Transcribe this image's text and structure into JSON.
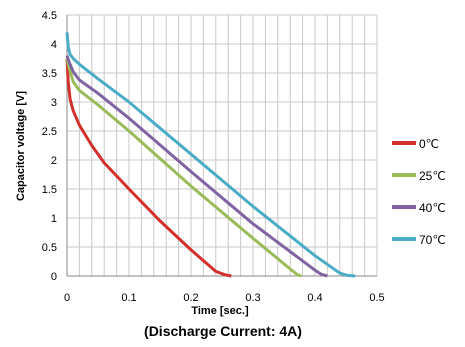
{
  "chart_data": {
    "type": "line",
    "xlabel": "Time [sec.]",
    "ylabel": "Capacitor voltage [V]",
    "caption": "(Discharge Current: 4A)",
    "xlim": [
      0,
      0.5
    ],
    "ylim": [
      0,
      4.5
    ],
    "x_ticks": [
      "0",
      "0.1",
      "0.2",
      "0.3",
      "0.4",
      "0.5"
    ],
    "y_ticks": [
      "0",
      "0.5",
      "1",
      "1.5",
      "2",
      "2.5",
      "3",
      "3.5",
      "4",
      "4.5"
    ],
    "grid": true,
    "legend_position": "right",
    "series": [
      {
        "name": "0℃",
        "color": "#d2302c",
        "points": [
          [
            0,
            3.75
          ],
          [
            0.002,
            3.35
          ],
          [
            0.005,
            3.05
          ],
          [
            0.01,
            2.85
          ],
          [
            0.02,
            2.6
          ],
          [
            0.04,
            2.25
          ],
          [
            0.06,
            1.95
          ],
          [
            0.1,
            1.5
          ],
          [
            0.15,
            0.95
          ],
          [
            0.2,
            0.45
          ],
          [
            0.24,
            0.08
          ],
          [
            0.255,
            0.02
          ],
          [
            0.265,
            0.0
          ]
        ]
      },
      {
        "name": "25℃",
        "color": "#9bbb59",
        "points": [
          [
            0,
            3.75
          ],
          [
            0.003,
            3.6
          ],
          [
            0.01,
            3.35
          ],
          [
            0.02,
            3.2
          ],
          [
            0.05,
            2.95
          ],
          [
            0.1,
            2.5
          ],
          [
            0.2,
            1.55
          ],
          [
            0.3,
            0.65
          ],
          [
            0.36,
            0.12
          ],
          [
            0.372,
            0.02
          ],
          [
            0.378,
            0.0
          ]
        ]
      },
      {
        "name": "40℃",
        "color": "#8064a2",
        "points": [
          [
            0,
            3.8
          ],
          [
            0.003,
            3.7
          ],
          [
            0.01,
            3.52
          ],
          [
            0.02,
            3.38
          ],
          [
            0.05,
            3.15
          ],
          [
            0.1,
            2.72
          ],
          [
            0.2,
            1.8
          ],
          [
            0.3,
            0.9
          ],
          [
            0.4,
            0.1
          ],
          [
            0.41,
            0.03
          ],
          [
            0.42,
            0.0
          ]
        ]
      },
      {
        "name": "70℃",
        "color": "#4bacc6",
        "points": [
          [
            0,
            4.2
          ],
          [
            0.002,
            3.95
          ],
          [
            0.005,
            3.82
          ],
          [
            0.01,
            3.75
          ],
          [
            0.02,
            3.65
          ],
          [
            0.05,
            3.4
          ],
          [
            0.1,
            3.0
          ],
          [
            0.2,
            2.1
          ],
          [
            0.3,
            1.2
          ],
          [
            0.4,
            0.35
          ],
          [
            0.44,
            0.05
          ],
          [
            0.452,
            0.01
          ],
          [
            0.465,
            0.0
          ]
        ]
      }
    ]
  }
}
